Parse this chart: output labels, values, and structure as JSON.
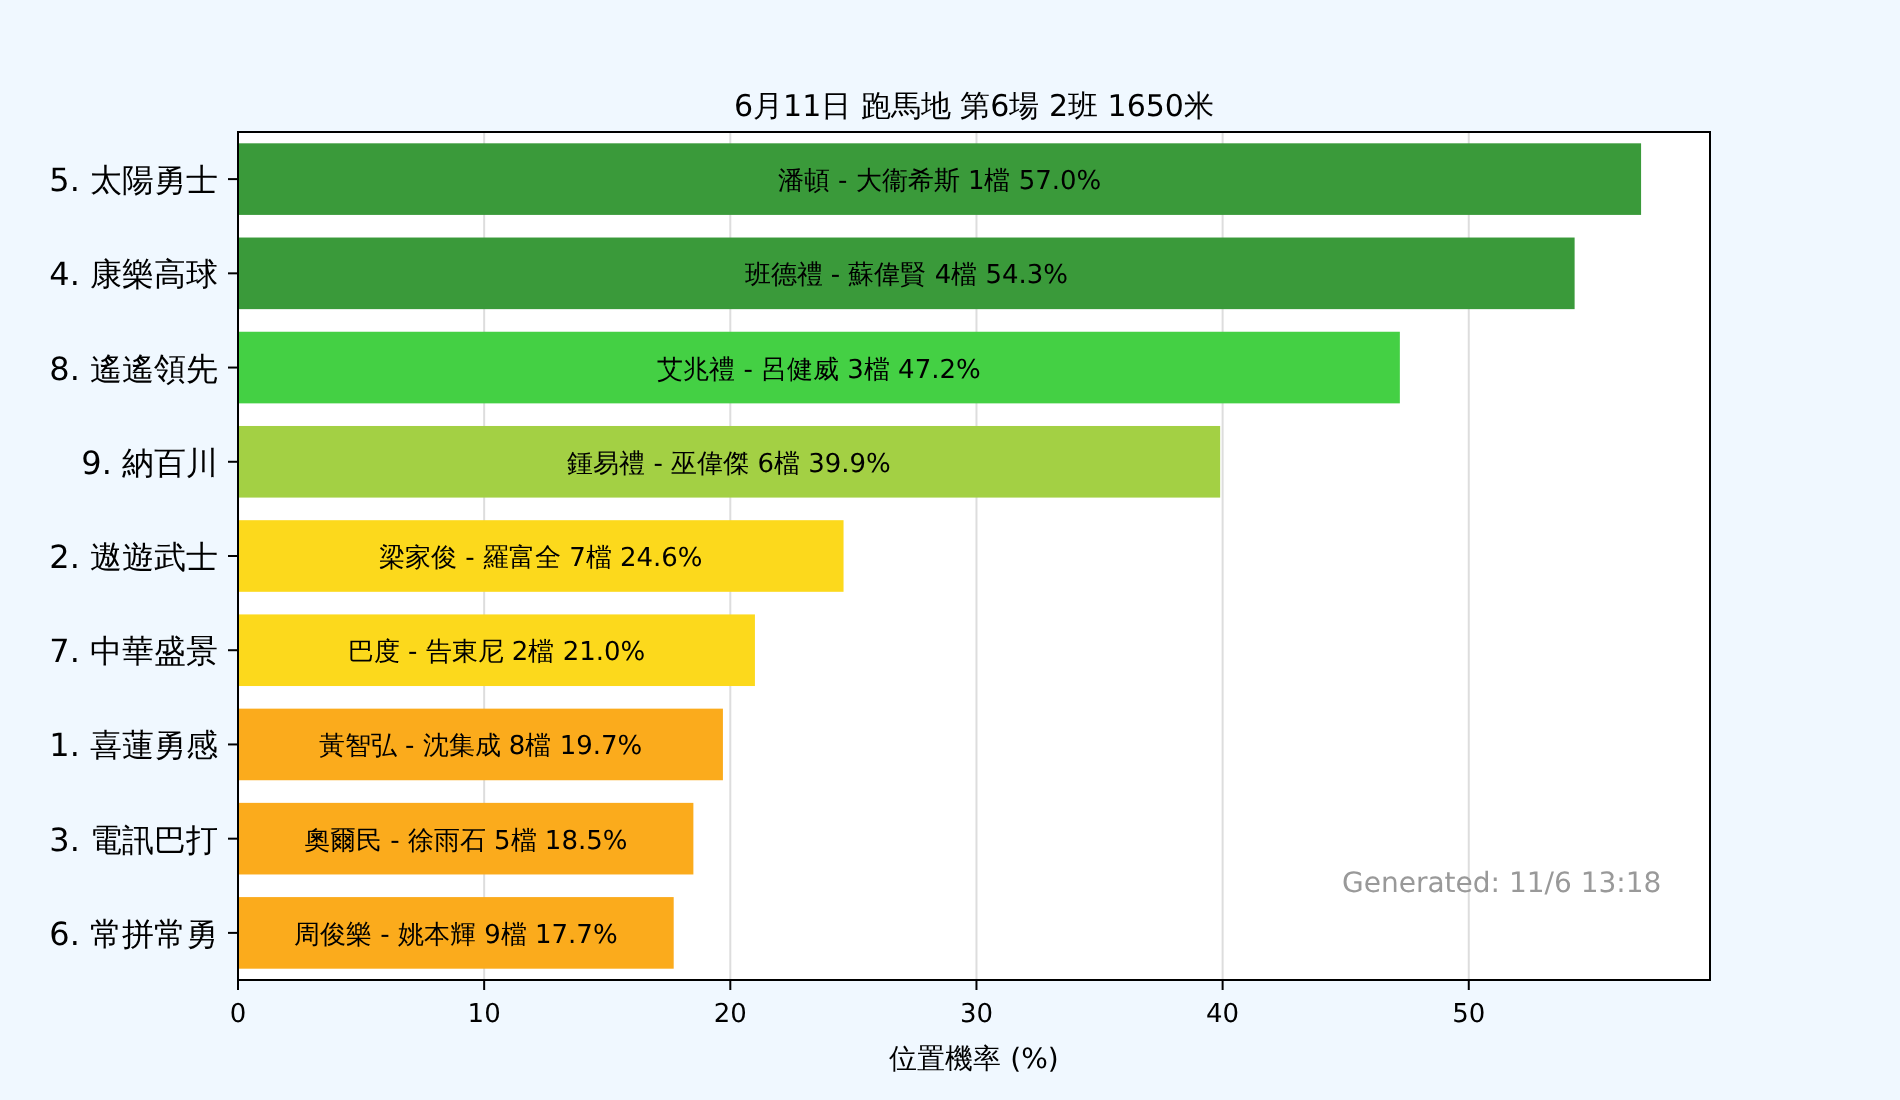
{
  "chart_data": {
    "type": "bar",
    "orientation": "horizontal",
    "title": "6月11日  跑馬地  第6場  2班  1650米",
    "xlabel": "位置機率 (%)",
    "categories": [
      "5. 太陽勇士",
      "4. 康樂高球",
      "8. 遙遙領先",
      "9. 納百川",
      "2. 遨遊武士",
      "7. 中華盛景",
      "1. 喜蓮勇感",
      "3. 電訊巴打",
      "6. 常拼常勇"
    ],
    "values": [
      57.0,
      54.3,
      47.2,
      39.9,
      24.6,
      21.0,
      19.7,
      18.5,
      17.7
    ],
    "colors": [
      "#3a9a3a",
      "#3a9a3a",
      "#44d044",
      "#a3d044",
      "#fcd91c",
      "#fcd91c",
      "#fbab1c",
      "#fbab1c",
      "#fbab1c"
    ],
    "value_labels": [
      "潘頓 - 大衞希斯 1檔  57.0%",
      "班德禮 - 蘇偉賢 4檔  54.3%",
      "艾兆禮 - 呂健威 3檔  47.2%",
      "鍾易禮 - 巫偉傑 6檔  39.9%",
      "梁家俊 - 羅富全 7檔  24.6%",
      "巴度 - 告東尼 2檔  21.0%",
      "黃智弘 - 沈集成 8檔  19.7%",
      "奧爾民 - 徐雨石 5檔  18.5%",
      "周俊樂 - 姚本輝 9檔  17.7%"
    ],
    "xlim": [
      0,
      59.8
    ],
    "xticks": [
      0,
      10,
      20,
      30,
      40,
      50
    ],
    "grid": "x",
    "annotations": [
      "Generated: 11/6 13:18"
    ]
  }
}
